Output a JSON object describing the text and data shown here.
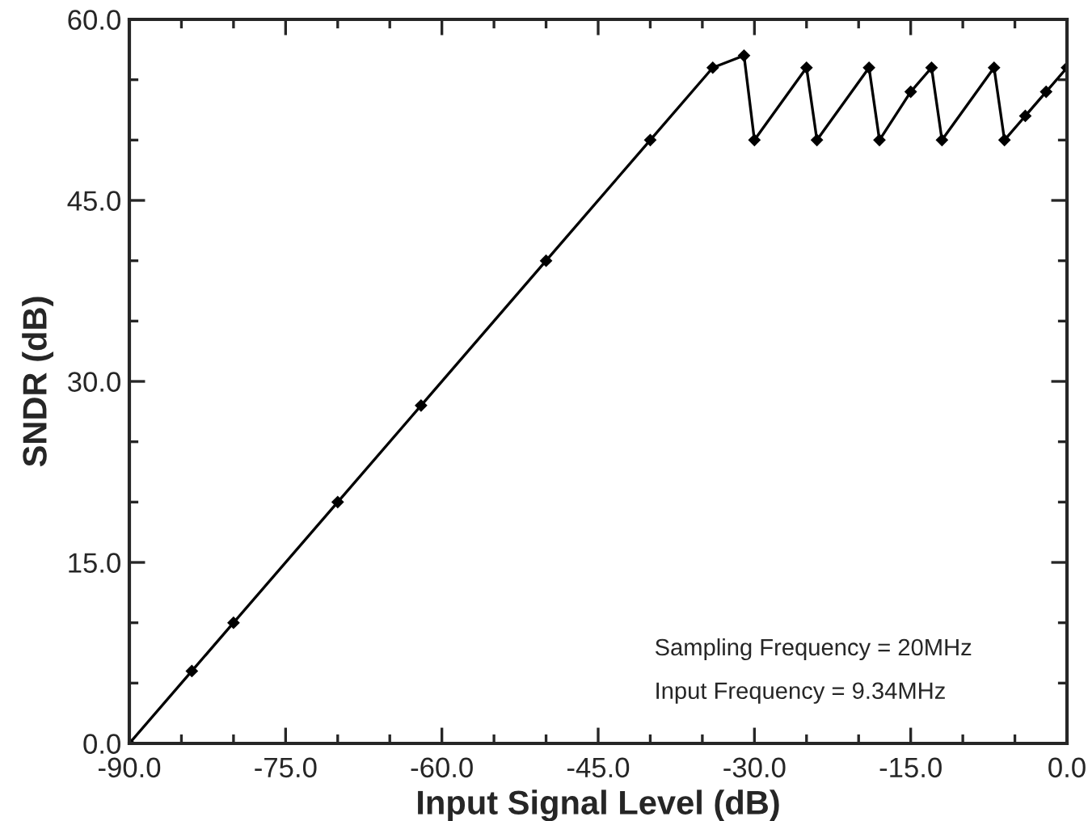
{
  "chart_data": {
    "type": "line",
    "xlabel": "Input Signal Level (dB)",
    "ylabel": "SNDR (dB)",
    "x": [
      -90,
      -84,
      -80,
      -70,
      -62,
      -50,
      -40,
      -34,
      -31,
      -30,
      -25,
      -24,
      -19,
      -18,
      -15,
      -13,
      -12,
      -7,
      -6,
      -4,
      -2,
      0
    ],
    "series": [
      {
        "color": "#000000",
        "values": [
          0,
          6,
          10,
          20,
          28,
          40,
          50,
          56,
          57,
          50,
          56,
          50,
          56,
          50,
          54,
          56,
          50,
          56,
          50,
          52,
          54,
          56
        ]
      }
    ],
    "xlim": [
      -90,
      0
    ],
    "ylim": [
      0,
      60
    ],
    "xticks": [
      {
        "value": -90,
        "label": "-90.0"
      },
      {
        "value": -85,
        "label": null
      },
      {
        "value": -80,
        "label": null
      },
      {
        "value": -75,
        "label": "-75.0"
      },
      {
        "value": -70,
        "label": null
      },
      {
        "value": -65,
        "label": null
      },
      {
        "value": -60,
        "label": "-60.0"
      },
      {
        "value": -55,
        "label": null
      },
      {
        "value": -50,
        "label": null
      },
      {
        "value": -45,
        "label": "-45.0"
      },
      {
        "value": -40,
        "label": null
      },
      {
        "value": -35,
        "label": null
      },
      {
        "value": -30,
        "label": "-30.0"
      },
      {
        "value": -25,
        "label": null
      },
      {
        "value": -20,
        "label": null
      },
      {
        "value": -15,
        "label": "-15.0"
      },
      {
        "value": -10,
        "label": null
      },
      {
        "value": -5,
        "label": null
      },
      {
        "value": 0,
        "label": "0.0"
      }
    ],
    "yticks": [
      {
        "value": 0,
        "label": "0.0"
      },
      {
        "value": 5,
        "label": null
      },
      {
        "value": 10,
        "label": null
      },
      {
        "value": 15,
        "label": "15.0"
      },
      {
        "value": 20,
        "label": null
      },
      {
        "value": 25,
        "label": null
      },
      {
        "value": 30,
        "label": "30.0"
      },
      {
        "value": 35,
        "label": null
      },
      {
        "value": 40,
        "label": null
      },
      {
        "value": 45,
        "label": "45.0"
      },
      {
        "value": 50,
        "label": null
      },
      {
        "value": 55,
        "label": null
      },
      {
        "value": 60,
        "label": "60.0"
      }
    ],
    "annotations": [
      "Sampling Frequency = 20MHz",
      "Input Frequency = 9.34MHz"
    ],
    "marker": "diamond",
    "line_style": "solid",
    "grid": false,
    "legend": false
  }
}
